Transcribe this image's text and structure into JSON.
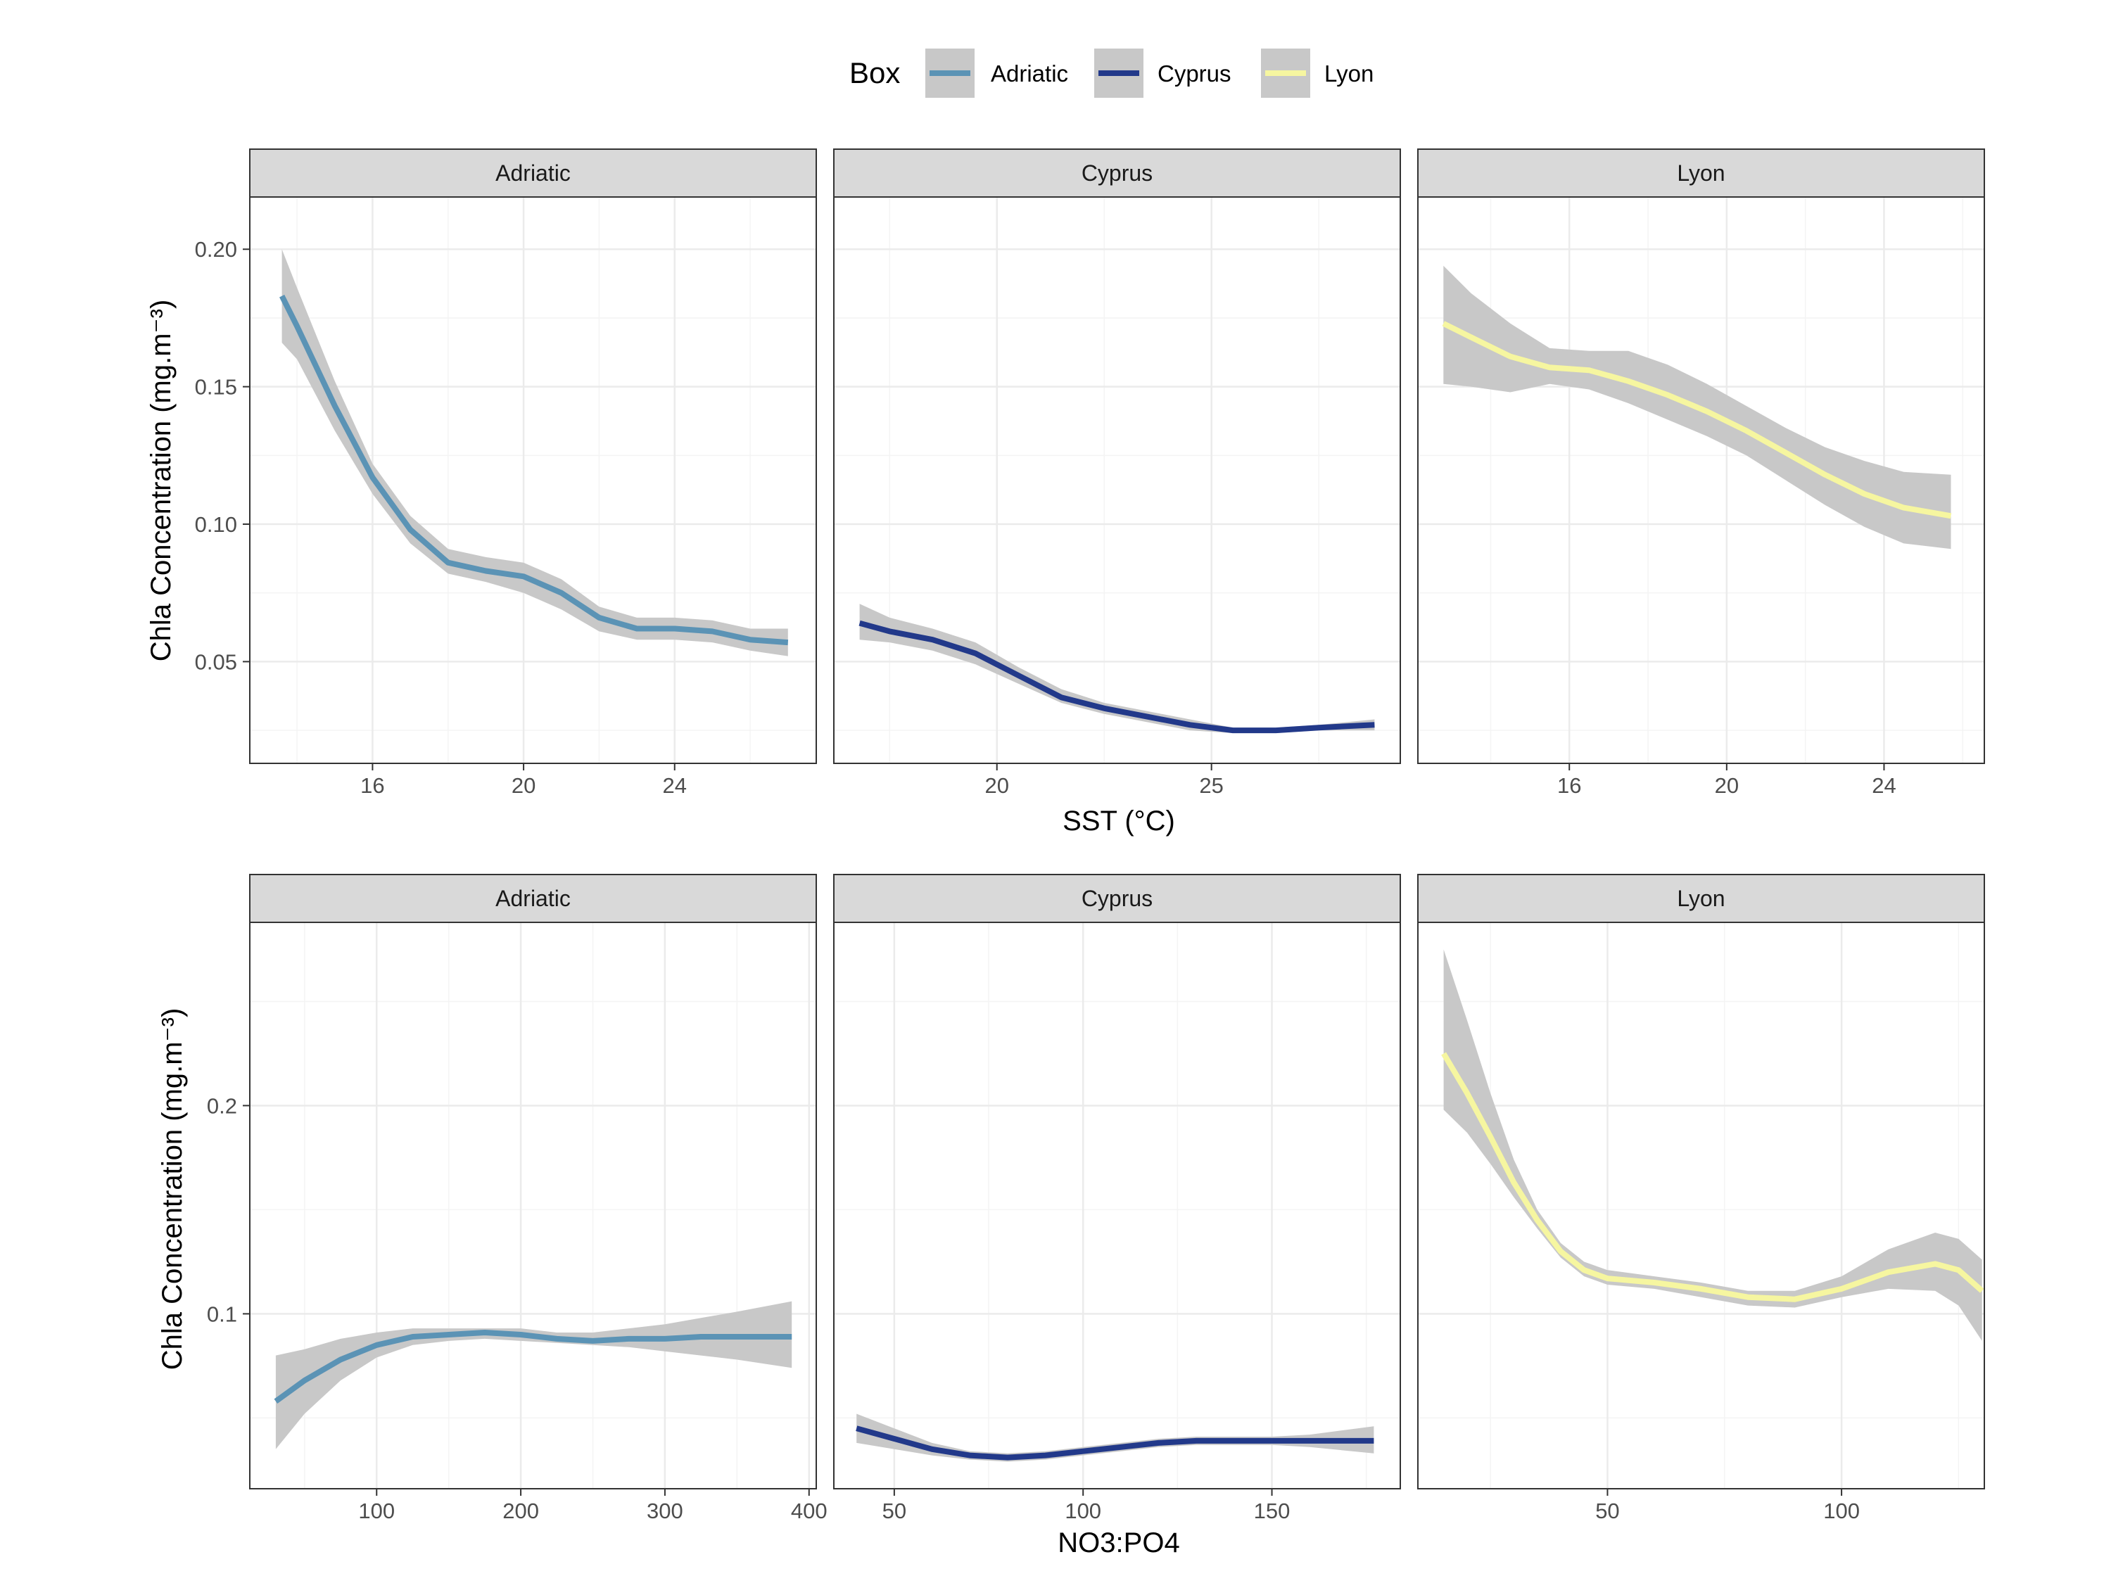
{
  "legend": {
    "title": "Box",
    "items": [
      {
        "label": "Adriatic",
        "color": "#5B93B5"
      },
      {
        "label": "Cyprus",
        "color": "#22398A"
      },
      {
        "label": "Lyon",
        "color": "#F6F6A0"
      }
    ]
  },
  "colors": {
    "ribbon": "#C8C8C8",
    "strip_bg": "#D9D9D9",
    "grid_major": "#EBEBEB",
    "grid_minor": "#F4F4F4"
  },
  "chart_data": [
    {
      "type": "line",
      "row_title_x": "SST (°C)",
      "row_title_y": "Chla Concentration (mg.m⁻³)",
      "ylim": [
        0.013,
        0.219
      ],
      "y_ticks": [
        0.05,
        0.1,
        0.15,
        0.2
      ],
      "y_tick_labels": [
        "0.05",
        "0.10",
        "0.15",
        "0.20"
      ],
      "panels": [
        {
          "strip": "Adriatic",
          "series_color": "#5B93B5",
          "xlim": [
            12.75,
            27.75
          ],
          "x_ticks": [
            16,
            20,
            24
          ],
          "x_tick_labels": [
            "16",
            "20",
            "24"
          ],
          "x": [
            13.6,
            14.0,
            15.0,
            16.0,
            17.0,
            18.0,
            19.0,
            20.0,
            21.0,
            22.0,
            23.0,
            24.0,
            25.0,
            26.0,
            27.0
          ],
          "y": [
            0.183,
            0.172,
            0.143,
            0.117,
            0.098,
            0.086,
            0.083,
            0.081,
            0.075,
            0.066,
            0.062,
            0.062,
            0.061,
            0.058,
            0.057
          ],
          "lower": [
            0.166,
            0.16,
            0.134,
            0.111,
            0.093,
            0.082,
            0.079,
            0.075,
            0.069,
            0.061,
            0.058,
            0.058,
            0.057,
            0.054,
            0.052
          ],
          "upper": [
            0.2,
            0.186,
            0.152,
            0.122,
            0.103,
            0.091,
            0.088,
            0.086,
            0.08,
            0.07,
            0.066,
            0.066,
            0.065,
            0.062,
            0.062
          ]
        },
        {
          "strip": "Cyprus",
          "series_color": "#22398A",
          "xlim": [
            16.2,
            29.4
          ],
          "x_ticks": [
            20,
            25
          ],
          "x_tick_labels": [
            "20",
            "25"
          ],
          "x": [
            16.8,
            17.5,
            18.5,
            19.5,
            20.5,
            21.5,
            22.5,
            23.5,
            24.5,
            25.5,
            26.5,
            27.5,
            28.8
          ],
          "y": [
            0.064,
            0.061,
            0.058,
            0.053,
            0.045,
            0.037,
            0.033,
            0.03,
            0.027,
            0.025,
            0.025,
            0.026,
            0.027
          ],
          "lower": [
            0.058,
            0.057,
            0.054,
            0.049,
            0.042,
            0.035,
            0.031,
            0.028,
            0.025,
            0.024,
            0.024,
            0.025,
            0.025
          ],
          "upper": [
            0.071,
            0.066,
            0.062,
            0.057,
            0.048,
            0.04,
            0.035,
            0.032,
            0.029,
            0.026,
            0.026,
            0.027,
            0.029
          ]
        },
        {
          "strip": "Lyon",
          "series_color": "#F6F6A0",
          "xlim": [
            12.15,
            26.55
          ],
          "x_ticks": [
            16,
            20,
            24
          ],
          "x_tick_labels": [
            "16",
            "20",
            "24"
          ],
          "x": [
            12.8,
            13.5,
            14.5,
            15.5,
            16.5,
            17.5,
            18.5,
            19.5,
            20.5,
            21.5,
            22.5,
            23.5,
            24.5,
            25.7
          ],
          "y": [
            0.173,
            0.168,
            0.161,
            0.157,
            0.156,
            0.152,
            0.147,
            0.141,
            0.134,
            0.126,
            0.118,
            0.111,
            0.106,
            0.103
          ],
          "lower": [
            0.151,
            0.15,
            0.148,
            0.151,
            0.149,
            0.144,
            0.138,
            0.132,
            0.125,
            0.116,
            0.107,
            0.099,
            0.093,
            0.091
          ],
          "upper": [
            0.194,
            0.184,
            0.173,
            0.164,
            0.163,
            0.163,
            0.158,
            0.151,
            0.143,
            0.135,
            0.128,
            0.123,
            0.119,
            0.118
          ]
        }
      ]
    },
    {
      "type": "line",
      "row_title_x": "NO3:PO4",
      "row_title_y": "Chla Concentration (mg.m⁻³)",
      "ylim": [
        0.016,
        0.288
      ],
      "y_ticks": [
        0.1,
        0.2
      ],
      "y_tick_labels": [
        "0.1",
        "0.2"
      ],
      "panels": [
        {
          "strip": "Adriatic",
          "series_color": "#5B93B5",
          "xlim": [
            12,
            405
          ],
          "x_ticks": [
            100,
            200,
            300,
            400
          ],
          "x_tick_labels": [
            "100",
            "200",
            "300",
            "400"
          ],
          "x": [
            30,
            50,
            75,
            100,
            125,
            150,
            175,
            200,
            225,
            250,
            275,
            300,
            325,
            350,
            388
          ],
          "y": [
            0.058,
            0.068,
            0.078,
            0.085,
            0.089,
            0.09,
            0.091,
            0.09,
            0.088,
            0.087,
            0.088,
            0.088,
            0.089,
            0.089,
            0.089
          ],
          "lower": [
            0.035,
            0.052,
            0.068,
            0.079,
            0.085,
            0.087,
            0.088,
            0.087,
            0.086,
            0.085,
            0.084,
            0.082,
            0.08,
            0.078,
            0.074
          ],
          "upper": [
            0.08,
            0.083,
            0.088,
            0.091,
            0.093,
            0.093,
            0.093,
            0.093,
            0.091,
            0.091,
            0.093,
            0.095,
            0.098,
            0.101,
            0.106
          ]
        },
        {
          "strip": "Cyprus",
          "series_color": "#22398A",
          "xlim": [
            34,
            184
          ],
          "x_ticks": [
            50,
            100,
            150
          ],
          "x_tick_labels": [
            "50",
            "100",
            "150"
          ],
          "x": [
            40,
            50,
            60,
            70,
            80,
            90,
            100,
            110,
            120,
            130,
            140,
            150,
            160,
            177
          ],
          "y": [
            0.045,
            0.04,
            0.035,
            0.032,
            0.031,
            0.032,
            0.034,
            0.036,
            0.038,
            0.039,
            0.039,
            0.039,
            0.039,
            0.039
          ],
          "lower": [
            0.038,
            0.035,
            0.032,
            0.03,
            0.029,
            0.03,
            0.032,
            0.034,
            0.036,
            0.037,
            0.037,
            0.037,
            0.036,
            0.033
          ],
          "upper": [
            0.052,
            0.045,
            0.038,
            0.034,
            0.033,
            0.034,
            0.036,
            0.038,
            0.04,
            0.041,
            0.041,
            0.041,
            0.042,
            0.046
          ]
        },
        {
          "strip": "Lyon",
          "series_color": "#F6F6A0",
          "xlim": [
            9.5,
            130.5
          ],
          "x_ticks": [
            50,
            100
          ],
          "x_tick_labels": [
            "50",
            "100"
          ],
          "x": [
            15,
            20,
            25,
            30,
            35,
            40,
            45,
            50,
            60,
            70,
            80,
            90,
            100,
            110,
            120,
            125,
            130
          ],
          "y": [
            0.225,
            0.206,
            0.185,
            0.163,
            0.145,
            0.13,
            0.121,
            0.117,
            0.115,
            0.112,
            0.108,
            0.107,
            0.112,
            0.12,
            0.124,
            0.121,
            0.111
          ],
          "lower": [
            0.198,
            0.187,
            0.172,
            0.156,
            0.141,
            0.127,
            0.118,
            0.114,
            0.112,
            0.108,
            0.104,
            0.103,
            0.108,
            0.112,
            0.111,
            0.104,
            0.087
          ],
          "upper": [
            0.275,
            0.241,
            0.206,
            0.174,
            0.15,
            0.134,
            0.125,
            0.121,
            0.118,
            0.115,
            0.111,
            0.111,
            0.118,
            0.131,
            0.139,
            0.136,
            0.126
          ]
        }
      ]
    }
  ]
}
